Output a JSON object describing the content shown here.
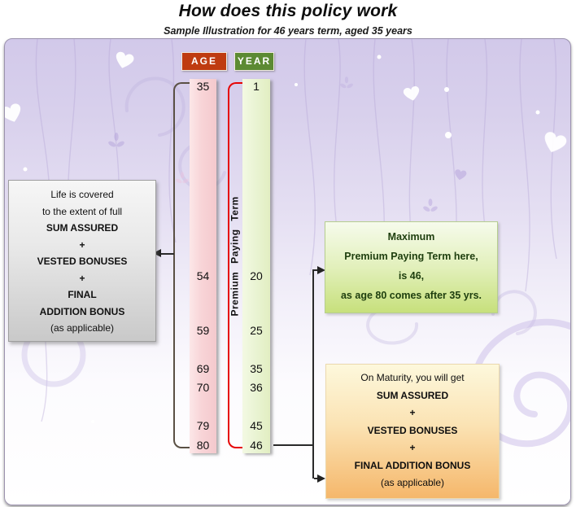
{
  "header": {
    "title": "How does this policy work",
    "subtitle": "Sample Illustration for 46 years term, aged 35 years"
  },
  "badges": {
    "age": "AGE",
    "year": "YEAR"
  },
  "timeline": {
    "premium_paying_term_label": "Premium Paying Term",
    "rows": [
      {
        "age": "35",
        "year": "1"
      },
      {
        "age": "54",
        "year": "20"
      },
      {
        "age": "59",
        "year": "25"
      },
      {
        "age": "69",
        "year": "35"
      },
      {
        "age": "70",
        "year": "36"
      },
      {
        "age": "79",
        "year": "45"
      },
      {
        "age": "80",
        "year": "46"
      }
    ]
  },
  "life_cover_box": {
    "lines": [
      {
        "text": "Life is covered",
        "bold": false
      },
      {
        "text": "to the extent of full",
        "bold": false
      },
      {
        "text": "SUM ASSURED",
        "bold": true
      },
      {
        "text": "+",
        "bold": true
      },
      {
        "text": "VESTED BONUSES",
        "bold": true
      },
      {
        "text": "+",
        "bold": true
      },
      {
        "text": "FINAL",
        "bold": true
      },
      {
        "text": "ADDITION BONUS",
        "bold": true
      },
      {
        "text": "(as applicable)",
        "bold": false
      }
    ]
  },
  "max_term_box": {
    "lines": [
      {
        "text": "Maximum",
        "bold": true
      },
      {
        "text": "Premium Paying Term here,",
        "bold": true
      },
      {
        "text": "is 46,",
        "bold": true
      },
      {
        "text": "as age 80 comes after 35 yrs.",
        "bold": true
      }
    ]
  },
  "maturity_box": {
    "lines": [
      {
        "text": "On Maturity, you will get",
        "bold": false
      },
      {
        "text": "SUM ASSURED",
        "bold": true
      },
      {
        "text": "+",
        "bold": true
      },
      {
        "text": "VESTED BONUSES",
        "bold": true
      },
      {
        "text": "+",
        "bold": true
      },
      {
        "text": "FINAL ADDITION BONUS",
        "bold": true
      },
      {
        "text": "(as applicable)",
        "bold": false
      }
    ]
  },
  "colors": {
    "age_badge": "#bf3b10",
    "year_badge": "#5c8a33",
    "age_bar": "#f8d4d7",
    "year_bar": "#eaf4d4",
    "red_bracket": "#e60505",
    "dark_bracket": "#5a5044",
    "connector": "#2a2a2a",
    "panel_lavender": "#d2c9ea",
    "max_term_text": "#1e3e0e"
  }
}
